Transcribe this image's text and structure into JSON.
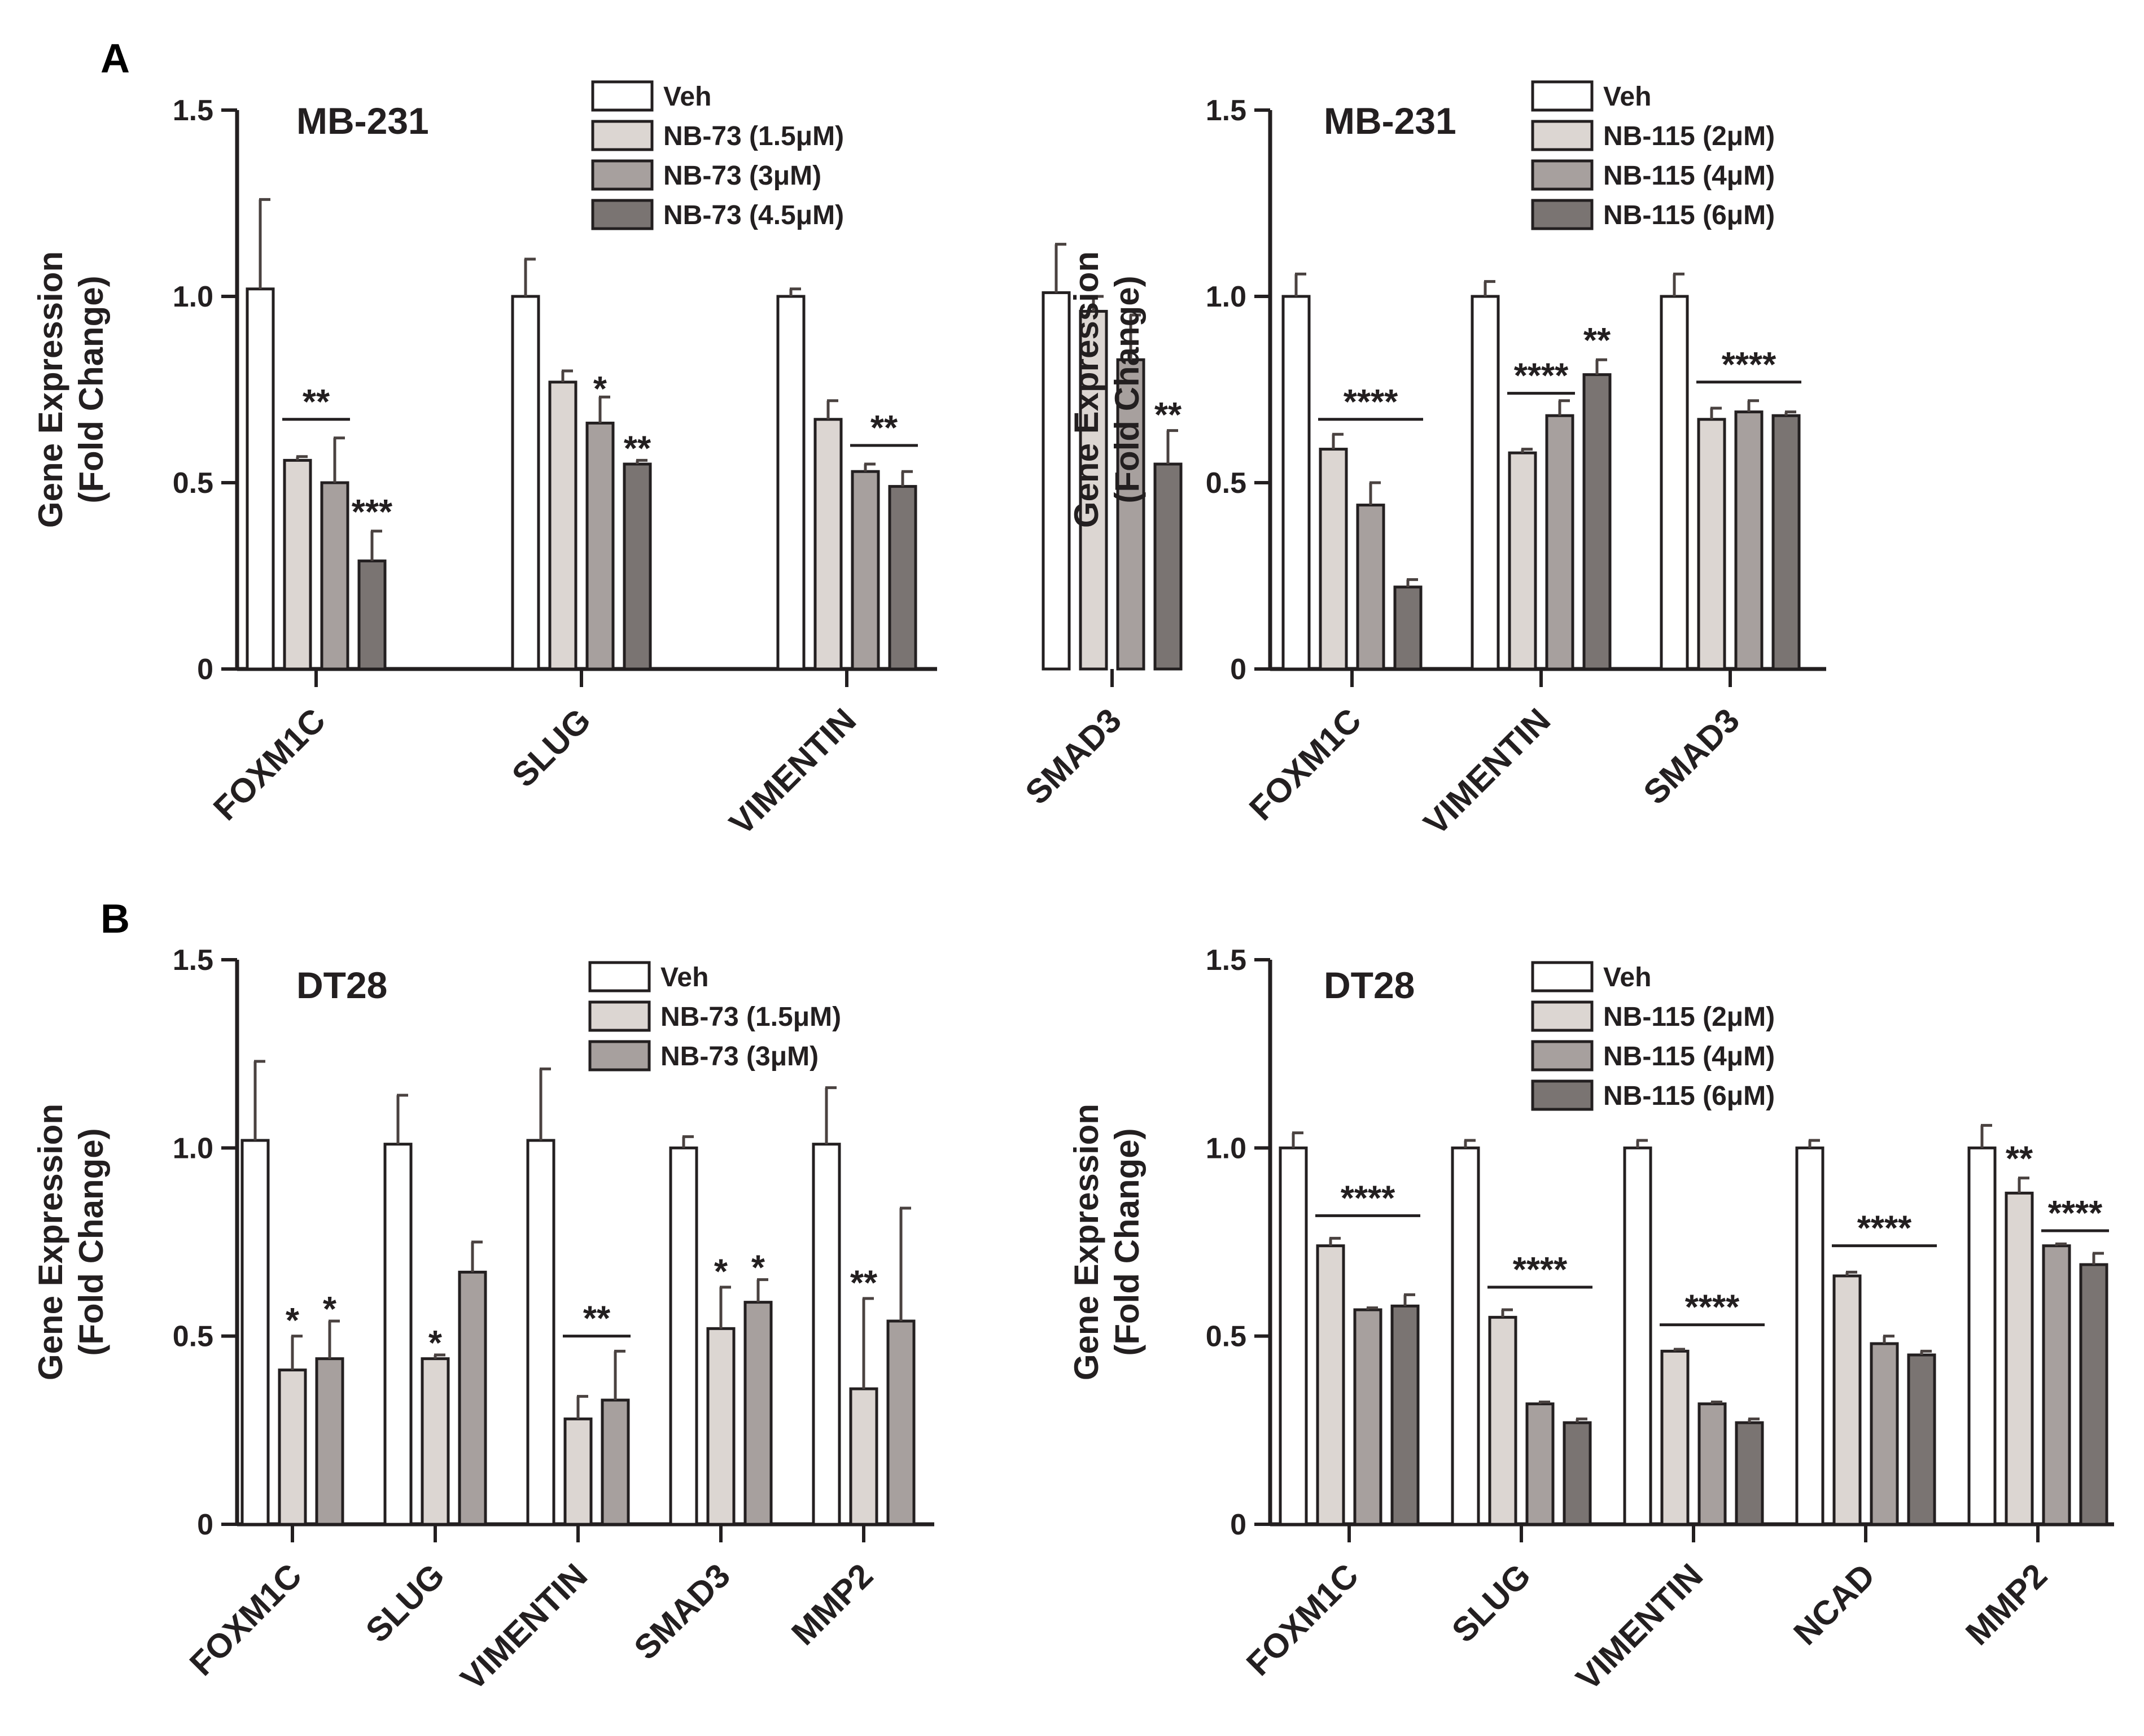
{
  "panel_labels": [
    "A",
    "B"
  ],
  "colors": {
    "series": [
      "#ffffff",
      "#dcd6d2",
      "#a7a09e",
      "#7a7472"
    ],
    "stroke": "#231f20",
    "errbar": "#4a4240"
  },
  "chart_data": [
    {
      "type": "bar",
      "title": "MB-231",
      "ylabel": [
        "Gene Expression",
        "(Fold Change)"
      ],
      "yticks": [
        "0",
        "0.5",
        "1.0",
        "1.5"
      ],
      "ylim": [
        0,
        1.5
      ],
      "categories": [
        "FOXM1C",
        "SLUG",
        "VIMENTIN",
        "SMAD3"
      ],
      "series": [
        {
          "name": "Veh",
          "values": [
            1.02,
            1.0,
            1.0,
            1.01
          ],
          "errors": [
            0.24,
            0.1,
            0.02,
            0.13
          ]
        },
        {
          "name": "NB-73 (1.5μM)",
          "values": [
            0.56,
            0.77,
            0.67,
            0.96
          ],
          "errors": [
            0.01,
            0.03,
            0.05,
            0.04
          ]
        },
        {
          "name": "NB-73 (3μM)",
          "values": [
            0.5,
            0.66,
            0.53,
            0.83
          ],
          "errors": [
            0.12,
            0.07,
            0.02,
            0.12
          ]
        },
        {
          "name": "NB-73 (4.5μM)",
          "values": [
            0.29,
            0.55,
            0.49,
            0.55
          ],
          "errors": [
            0.08,
            0.01,
            0.04,
            0.09
          ]
        }
      ],
      "annotations": [
        {
          "text": "**",
          "cat": 0,
          "from": 1,
          "to": 2,
          "y": 0.67,
          "line": true
        },
        {
          "text": "***",
          "cat": 0,
          "bar": 3,
          "y": 0.42
        },
        {
          "text": "*",
          "cat": 1,
          "bar": 2,
          "y": 0.75
        },
        {
          "text": "**",
          "cat": 1,
          "bar": 3,
          "y": 0.59
        },
        {
          "text": "**",
          "cat": 2,
          "from": 2,
          "to": 3,
          "y": 0.6,
          "line": true
        },
        {
          "text": "**",
          "cat": 3,
          "bar": 3,
          "y": 0.68
        }
      ]
    },
    {
      "type": "bar",
      "title": "MB-231",
      "ylabel": [
        "Gene Expression",
        "(Fold Change)"
      ],
      "yticks": [
        "0",
        "0.5",
        "1.0",
        "1.5"
      ],
      "ylim": [
        0,
        1.5
      ],
      "categories": [
        "FOXM1C",
        "VIMENTIN",
        "SMAD3"
      ],
      "series": [
        {
          "name": "Veh",
          "values": [
            1.0,
            1.0,
            1.0
          ],
          "errors": [
            0.06,
            0.04,
            0.06
          ]
        },
        {
          "name": "NB-115 (2μM)",
          "values": [
            0.59,
            0.58,
            0.67
          ],
          "errors": [
            0.04,
            0.01,
            0.03
          ]
        },
        {
          "name": "NB-115 (4μM)",
          "values": [
            0.44,
            0.68,
            0.69
          ],
          "errors": [
            0.06,
            0.04,
            0.03
          ]
        },
        {
          "name": "NB-115 (6μM)",
          "values": [
            0.22,
            0.79,
            0.68
          ],
          "errors": [
            0.02,
            0.04,
            0.01
          ]
        }
      ],
      "annotations": [
        {
          "text": "****",
          "cat": 0,
          "from": 1,
          "to": 3,
          "y": 0.67,
          "line": true
        },
        {
          "text": "****",
          "cat": 1,
          "from": 1,
          "to": 2,
          "y": 0.74,
          "line": true
        },
        {
          "text": "**",
          "cat": 1,
          "bar": 3,
          "y": 0.88
        },
        {
          "text": "****",
          "cat": 2,
          "from": 1,
          "to": 3,
          "y": 0.77,
          "line": true
        }
      ]
    },
    {
      "type": "bar",
      "title": "DT28",
      "ylabel": [
        "Gene Expression",
        "(Fold Change)"
      ],
      "yticks": [
        "0",
        "0.5",
        "1.0",
        "1.5"
      ],
      "ylim": [
        0,
        1.5
      ],
      "categories": [
        "FOXM1C",
        "SLUG",
        "VIMENTIN",
        "SMAD3",
        "MMP2"
      ],
      "series": [
        {
          "name": "Veh",
          "values": [
            1.02,
            1.01,
            1.02,
            1.0,
            1.01
          ],
          "errors": [
            0.21,
            0.13,
            0.19,
            0.03,
            0.15
          ]
        },
        {
          "name": "NB-73 (1.5μM)",
          "values": [
            0.41,
            0.44,
            0.28,
            0.52,
            0.36
          ],
          "errors": [
            0.09,
            0.01,
            0.06,
            0.11,
            0.24
          ]
        },
        {
          "name": "NB-73 (3μM)",
          "values": [
            0.44,
            0.67,
            0.33,
            0.59,
            0.54
          ],
          "errors": [
            0.1,
            0.08,
            0.13,
            0.06,
            0.3
          ]
        }
      ],
      "annotations": [
        {
          "text": "*",
          "cat": 0,
          "bar": 1,
          "y": 0.54
        },
        {
          "text": "*",
          "cat": 0,
          "bar": 2,
          "y": 0.57
        },
        {
          "text": "*",
          "cat": 1,
          "bar": 1,
          "y": 0.48
        },
        {
          "text": "**",
          "cat": 2,
          "from": 1,
          "to": 2,
          "y": 0.5,
          "line": true
        },
        {
          "text": "*",
          "cat": 3,
          "bar": 1,
          "y": 0.67
        },
        {
          "text": "*",
          "cat": 3,
          "bar": 2,
          "y": 0.68
        },
        {
          "text": "**",
          "cat": 4,
          "bar": 1,
          "y": 0.64
        }
      ]
    },
    {
      "type": "bar",
      "title": "DT28",
      "ylabel": [
        "Gene Expression",
        "(Fold Change)"
      ],
      "yticks": [
        "0",
        "0.5",
        "1.0",
        "1.5"
      ],
      "ylim": [
        0,
        1.5
      ],
      "categories": [
        "FOXM1C",
        "SLUG",
        "VIMENTIN",
        "NCAD",
        "MMP2"
      ],
      "series": [
        {
          "name": "Veh",
          "values": [
            1.0,
            1.0,
            1.0,
            1.0,
            1.0
          ],
          "errors": [
            0.04,
            0.02,
            0.02,
            0.02,
            0.06
          ]
        },
        {
          "name": "NB-115 (2μM)",
          "values": [
            0.74,
            0.55,
            0.46,
            0.66,
            0.88
          ],
          "errors": [
            0.02,
            0.02,
            0.005,
            0.01,
            0.04
          ]
        },
        {
          "name": "NB-115 (4μM)",
          "values": [
            0.57,
            0.32,
            0.32,
            0.48,
            0.74
          ],
          "errors": [
            0.005,
            0.005,
            0.005,
            0.02,
            0.005
          ]
        },
        {
          "name": "NB-115 (6μM)",
          "values": [
            0.58,
            0.27,
            0.27,
            0.45,
            0.69
          ],
          "errors": [
            0.03,
            0.01,
            0.01,
            0.01,
            0.03
          ]
        }
      ],
      "annotations": [
        {
          "text": "****",
          "cat": 0,
          "from": 1,
          "to": 3,
          "y": 0.82,
          "line": true
        },
        {
          "text": "****",
          "cat": 1,
          "from": 1,
          "to": 3,
          "y": 0.63,
          "line": true
        },
        {
          "text": "****",
          "cat": 2,
          "from": 1,
          "to": 3,
          "y": 0.53,
          "line": true
        },
        {
          "text": "****",
          "cat": 3,
          "from": 1,
          "to": 3,
          "y": 0.74,
          "line": true
        },
        {
          "text": "**",
          "cat": 4,
          "bar": 1,
          "y": 0.97
        },
        {
          "text": "****",
          "cat": 4,
          "from": 2,
          "to": 3,
          "y": 0.78,
          "line": true
        }
      ]
    }
  ]
}
